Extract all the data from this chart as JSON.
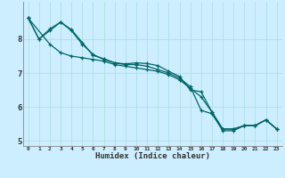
{
  "xlabel": "Humidex (Indice chaleur)",
  "bg_color": "#cceeff",
  "line_color": "#006666",
  "grid_color": "#aadddd",
  "xlim": [
    -0.5,
    23.5
  ],
  "ylim": [
    4.85,
    9.1
  ],
  "yticks": [
    5,
    6,
    7,
    8
  ],
  "xticks": [
    0,
    1,
    2,
    3,
    4,
    5,
    6,
    7,
    8,
    9,
    10,
    11,
    12,
    13,
    14,
    15,
    16,
    17,
    18,
    19,
    20,
    21,
    22,
    23
  ],
  "lines": [
    {
      "x": [
        0,
        1,
        2,
        3,
        4,
        5,
        6,
        7,
        8,
        9,
        10,
        11,
        12,
        13,
        14,
        15,
        16,
        17,
        18,
        19,
        20,
        21,
        22,
        23
      ],
      "y": [
        8.62,
        8.0,
        8.3,
        8.5,
        8.28,
        7.9,
        7.52,
        7.42,
        7.3,
        7.27,
        7.3,
        7.28,
        7.22,
        7.05,
        6.9,
        6.5,
        6.45,
        5.85,
        5.35,
        5.35,
        5.45,
        5.45,
        5.62,
        5.35
      ]
    },
    {
      "x": [
        0,
        1,
        2,
        3,
        4,
        5,
        6,
        7,
        8,
        9,
        10,
        11,
        12,
        13,
        14,
        15,
        16,
        17,
        18,
        19,
        20,
        21,
        22,
        23
      ],
      "y": [
        8.62,
        8.0,
        8.25,
        8.5,
        8.25,
        7.85,
        7.55,
        7.4,
        7.3,
        7.25,
        7.25,
        7.2,
        7.1,
        7.0,
        6.85,
        6.6,
        5.9,
        5.8,
        5.3,
        5.3,
        5.45,
        5.45,
        5.62,
        5.35
      ]
    },
    {
      "x": [
        0,
        2,
        3,
        4,
        5,
        6,
        7,
        8,
        9,
        10,
        11,
        12,
        13,
        14,
        15,
        16,
        17,
        18,
        19,
        20,
        21,
        22,
        23
      ],
      "y": [
        8.62,
        7.85,
        7.6,
        7.5,
        7.45,
        7.4,
        7.35,
        7.25,
        7.2,
        7.15,
        7.1,
        7.05,
        6.95,
        6.8,
        6.55,
        6.3,
        5.85,
        5.35,
        5.35,
        5.45,
        5.45,
        5.62,
        5.35
      ]
    }
  ]
}
